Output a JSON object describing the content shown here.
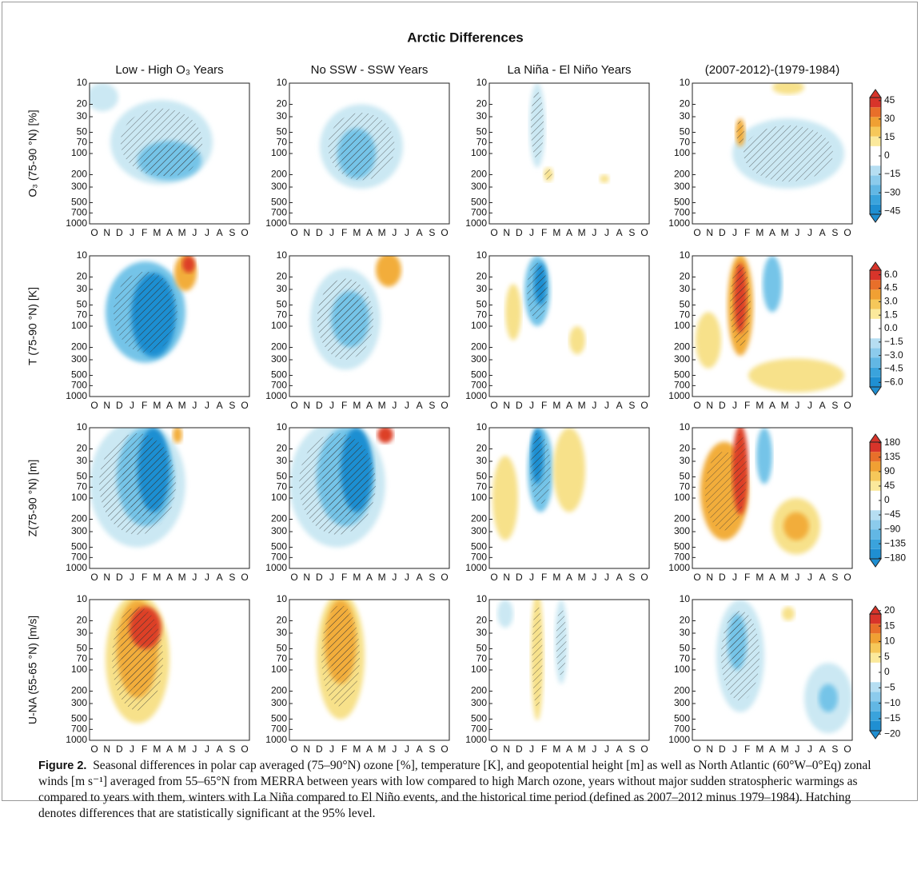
{
  "chart_data": {
    "type": "contour",
    "title": "Arctic Differences",
    "columns": [
      "Low - High O₃ Years",
      "No SSW - SSW Years",
      "La Niña - El Niño Years",
      "(2007-2012)-(1979-1984)"
    ],
    "rows": [
      {
        "label": "O₃ (75-90 °N) [%]",
        "clim": [
          -54,
          54
        ],
        "cticks": [
          45,
          30,
          15,
          0,
          {
            "value": -15,
            "label": "−15"
          },
          {
            "value": -30,
            "label": "−30"
          },
          {
            "value": -45,
            "label": "−45"
          }
        ]
      },
      {
        "label": "T (75-90 °N) [K]",
        "clim": [
          -7.4,
          7.4
        ],
        "cticks": [
          {
            "value": 6,
            "label": "6.0"
          },
          {
            "value": 4.5,
            "label": "4.5"
          },
          {
            "value": 3,
            "label": "3.0"
          },
          {
            "value": 1.5,
            "label": "1.5"
          },
          {
            "value": 0,
            "label": "0.0"
          },
          {
            "value": -1.5,
            "label": "−1.5"
          },
          {
            "value": -3,
            "label": "−3.0"
          },
          {
            "value": -4.5,
            "label": "−4.5"
          },
          {
            "value": -6,
            "label": "−6.0"
          }
        ]
      },
      {
        "label": "Z(75-90 °N) [m]",
        "clim": [
          -207,
          207
        ],
        "cticks": [
          180,
          135,
          90,
          45,
          0,
          {
            "value": -45,
            "label": "−45"
          },
          {
            "value": -90,
            "label": "−90"
          },
          {
            "value": -135,
            "label": "−135"
          },
          {
            "value": -180,
            "label": "−180"
          }
        ]
      },
      {
        "label": "U-NA (55-65 °N) [m/s]",
        "clim": [
          -21.5,
          21.5
        ],
        "cticks": [
          20,
          15,
          10,
          5,
          0,
          {
            "value": -5,
            "label": "−5"
          },
          {
            "value": -10,
            "label": "−10"
          },
          {
            "value": -15,
            "label": "−15"
          },
          {
            "value": -20,
            "label": "−20"
          }
        ]
      }
    ],
    "x_categories": [
      "O",
      "N",
      "D",
      "J",
      "F",
      "M",
      "A",
      "M",
      "J",
      "J",
      "A",
      "S",
      "O"
    ],
    "ylim": [
      1000,
      10
    ],
    "y_log": true,
    "yticks": [
      10,
      20,
      30,
      50,
      70,
      100,
      200,
      300,
      500,
      700,
      1000
    ],
    "caption": {
      "label": "Figure 2.",
      "text": "Seasonal differences in polar cap averaged (75–90°N) ozone [%], temperature [K], and geopotential height [m] as well as North Atlantic (60°W–0°Eq) zonal winds [m s⁻¹] averaged from 55–65°N from MERRA between years with low compared to high March ozone, years without major sudden stratospheric warmings as compared to years with them, winters with La Niña compared to El Niño events, and the historical time period (defined as 2007–2012 minus 1979–1984). Hatching denotes differences that are statistically significant at the 95% level."
    }
  }
}
